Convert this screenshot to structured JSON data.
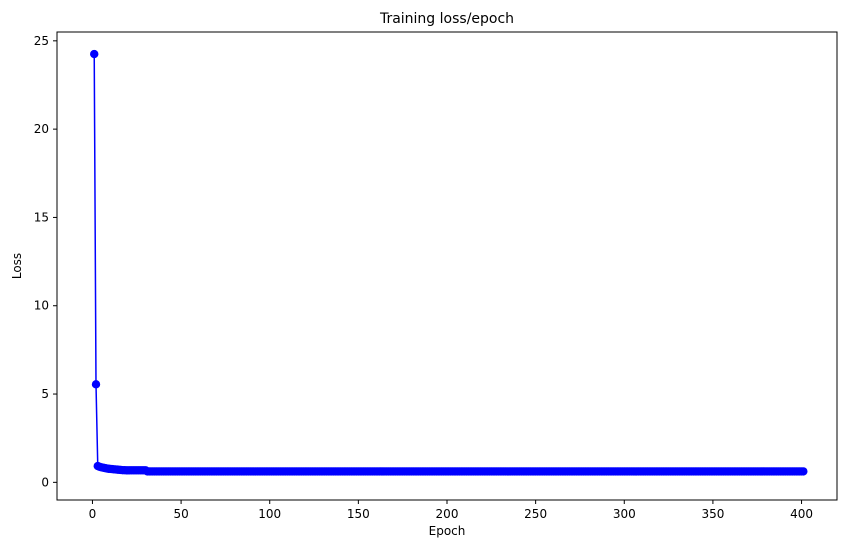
{
  "chart_data": {
    "type": "line",
    "title": "Training loss/epoch",
    "xlabel": "Epoch",
    "ylabel": "Loss",
    "xlim": [
      -20,
      420
    ],
    "ylim": [
      -1,
      25.5
    ],
    "xticks": [
      0,
      50,
      100,
      150,
      200,
      250,
      300,
      350,
      400
    ],
    "yticks": [
      0,
      5,
      10,
      15,
      20,
      25
    ],
    "grid": false,
    "legend": "none",
    "series": [
      {
        "color": "#0000ff",
        "marker": "circle",
        "x_start": 1,
        "values": [
          24.25,
          5.55,
          0.92,
          0.88,
          0.85,
          0.83,
          0.81,
          0.79,
          0.77,
          0.76,
          0.75,
          0.74,
          0.73,
          0.72,
          0.71,
          0.7,
          0.69,
          0.69,
          0.68,
          0.68,
          0.68,
          0.68,
          0.68,
          0.68,
          0.68,
          0.68,
          0.68,
          0.68,
          0.68,
          0.68,
          0.62
        ],
        "plateau_value": 0.62,
        "plateau_end": 401
      }
    ]
  }
}
